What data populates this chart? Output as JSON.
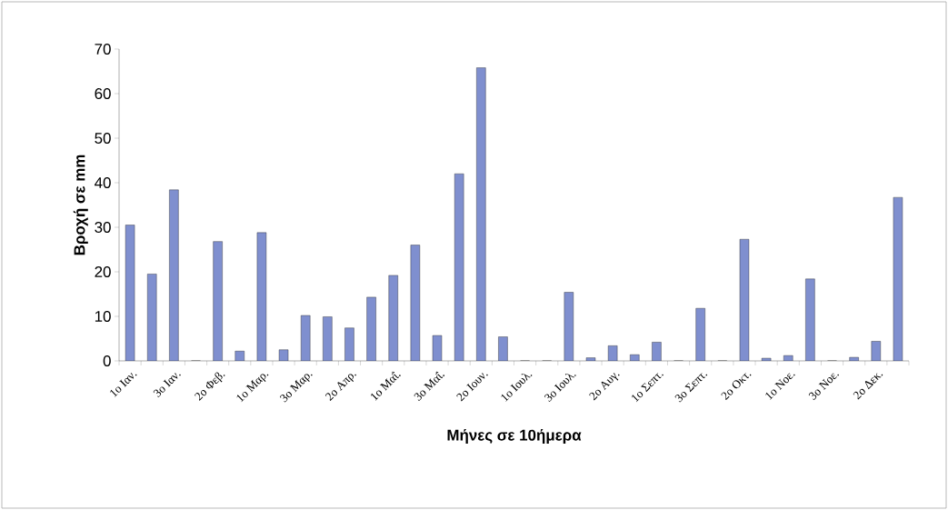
{
  "chart_data": {
    "type": "bar",
    "xlabel": "Μήνες σε 10ήμερα",
    "ylabel": "Βροχή σε mm",
    "categories": [
      "1ο Ιαν.",
      null,
      "3ο Ιαν.",
      null,
      "2ο Φεβ.",
      null,
      "1ο Μαρ.",
      null,
      "3ο Μαρ.",
      null,
      "2ο Απρ.",
      null,
      "1ο Μαΐ.",
      null,
      "3ο Μαΐ.",
      null,
      "2ο Ιουν.",
      null,
      "1ο Ιουλ.",
      null,
      "3ο Ιουλ.",
      null,
      "2ο Αυγ.",
      null,
      "1ο Σεπτ.",
      null,
      "3ο Σεπτ.",
      null,
      "2ο Οκτ.",
      null,
      "1ο Νοε.",
      null,
      "3ο Νοε.",
      null,
      "2ο Δεκ.",
      null
    ],
    "values": [
      30.5,
      19.5,
      38.4,
      0,
      26.8,
      2.2,
      28.8,
      2.5,
      10.2,
      9.9,
      7.4,
      14.3,
      19.2,
      26.0,
      5.7,
      42.0,
      65.8,
      5.4,
      0,
      0,
      15.4,
      0.7,
      3.4,
      1.4,
      4.2,
      0,
      11.8,
      0,
      27.3,
      0.6,
      1.2,
      18.4,
      0,
      0.8,
      4.4,
      36.7
    ],
    "color": "#7f8fcf",
    "ylim": [
      0,
      70
    ],
    "yticks": [
      0,
      10,
      20,
      30,
      40,
      50,
      60,
      70
    ],
    "grid": false
  }
}
